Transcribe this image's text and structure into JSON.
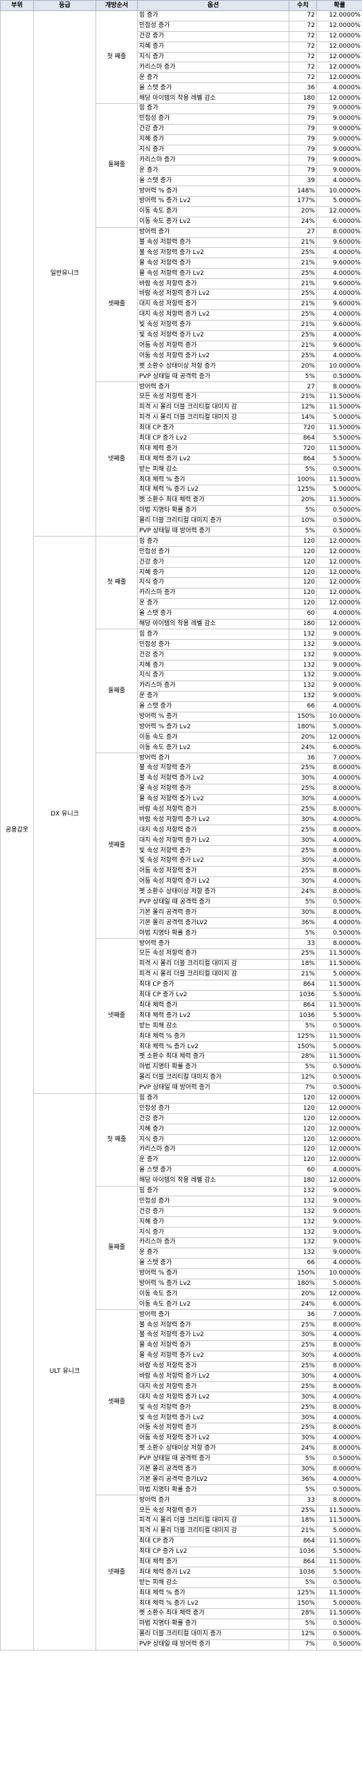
{
  "headers": [
    "부위",
    "등급",
    "개방순서",
    "옵션",
    "수치",
    "확률"
  ],
  "part": "공용갑옷",
  "grades": [
    {
      "name": "일반유니크",
      "slots": [
        {
          "name": "첫 째줄",
          "rows": [
            [
              "힘 증가",
              "72",
              "12.0000%"
            ],
            [
              "민첩성 증가",
              "72",
              "12.0000%"
            ],
            [
              "건강 증가",
              "72",
              "12.0000%"
            ],
            [
              "지혜 증가",
              "72",
              "12.0000%"
            ],
            [
              "지식 증가",
              "72",
              "12.0000%"
            ],
            [
              "카리스마 증가",
              "72",
              "12.0000%"
            ],
            [
              "운 증가",
              "72",
              "12.0000%"
            ],
            [
              "올 스탯 증가",
              "36",
              "4.0000%"
            ],
            [
              "해당 아이템의 착용 레벨 감소",
              "180",
              "12.0000%"
            ]
          ]
        },
        {
          "name": "둘째줄",
          "rows": [
            [
              "힘 증가",
              "79",
              "9.0000%"
            ],
            [
              "민첩성 증가",
              "79",
              "9.0000%"
            ],
            [
              "건강 증가",
              "79",
              "9.0000%"
            ],
            [
              "지혜 증가",
              "79",
              "9.0000%"
            ],
            [
              "지식 증가",
              "79",
              "9.0000%"
            ],
            [
              "카리스마 증가",
              "79",
              "9.0000%"
            ],
            [
              "운 증가",
              "79",
              "9.0000%"
            ],
            [
              "올 스탯 증가",
              "39",
              "4.0000%"
            ],
            [
              "방어력 % 증가",
              "148%",
              "10.0000%"
            ],
            [
              "방어력 % 증가 Lv2",
              "177%",
              "5.0000%"
            ],
            [
              "이동 속도 증가",
              "20%",
              "12.0000%"
            ],
            [
              "이동 속도 증가 Lv2",
              "24%",
              "6.0000%"
            ]
          ]
        },
        {
          "name": "셋째줄",
          "rows": [
            [
              "방어력 증가",
              "27",
              "8.0000%"
            ],
            [
              "불 속성 저항력 증가",
              "21%",
              "9.6000%"
            ],
            [
              "불 속성 저항력 증가 Lv2",
              "25%",
              "4.0000%"
            ],
            [
              "물 속성 저항력 증가",
              "21%",
              "9.6000%"
            ],
            [
              "물 속성 저항력 증가 Lv2",
              "25%",
              "4.0000%"
            ],
            [
              "바람 속성 저항력 증가",
              "21%",
              "9.6000%"
            ],
            [
              "바람 속성 저항력 증가 Lv2",
              "25%",
              "4.0000%"
            ],
            [
              "대지 속성 저항력 증가",
              "21%",
              "9.6000%"
            ],
            [
              "대지 속성 저항력 증가 Lv2",
              "25%",
              "4.0000%"
            ],
            [
              "빛 속성 저항력 증가",
              "21%",
              "9.6000%"
            ],
            [
              "빛 속성 저항력 증가 Lv2",
              "25%",
              "4.0000%"
            ],
            [
              "어둠 속성 저항력 증가",
              "21%",
              "9.6000%"
            ],
            [
              "어둠 속성 저항력 증가 Lv2",
              "25%",
              "4.0000%"
            ],
            [
              "펫 소환수 상태이상 저항 증가",
              "20%",
              "10.0000%"
            ],
            [
              "PVP 상태일 때 공격력 증가",
              "5%",
              "0.5000%"
            ]
          ]
        },
        {
          "name": "넷째줄",
          "rows": [
            [
              "방어력 증가",
              "27",
              "8.0000%"
            ],
            [
              "모든 속성 저항력 증가",
              "21%",
              "11.5000%"
            ],
            [
              "피격 시 몰리 더블 크리티컬 대미지 감",
              "12%",
              "11.5000%"
            ],
            [
              "피격 시 몰리 더블 크리티컬 대미지 감",
              "14%",
              "5.0000%"
            ],
            [
              "최대 CP 증가",
              "720",
              "11.5000%"
            ],
            [
              "최대 CP 증가 Lv2",
              "864",
              "5.5000%"
            ],
            [
              "최대 체력 증가",
              "720",
              "11.5000%"
            ],
            [
              "최대 체력 증가 Lv2",
              "864",
              "5.5000%"
            ],
            [
              "받는 피해 감소",
              "5%",
              "0.5000%"
            ],
            [
              "최대 체력 % 증가",
              "100%",
              "11.5000%"
            ],
            [
              "최대 체력 % 증가 Lv2",
              "125%",
              "5.0000%"
            ],
            [
              "펫 소환수 최대 체력 증가",
              "20%",
              "11.5000%"
            ],
            [
              "마법 지명타 확률 증가",
              "5%",
              "0.5000%"
            ],
            [
              "몰리 더블 크리티컬 대미지 증가",
              "10%",
              "0.5000%"
            ],
            [
              "PVP 상태일 때 방어력 증가",
              "5%",
              "0.5000%"
            ]
          ]
        }
      ]
    },
    {
      "name": "DX 유니크",
      "slots": [
        {
          "name": "첫 째줄",
          "rows": [
            [
              "힘 증가",
              "120",
              "12.0000%"
            ],
            [
              "민첩성 증가",
              "120",
              "12.0000%"
            ],
            [
              "건강 증가",
              "120",
              "12.0000%"
            ],
            [
              "지혜 증가",
              "120",
              "12.0000%"
            ],
            [
              "지식 증가",
              "120",
              "12.0000%"
            ],
            [
              "카리스마 증가",
              "120",
              "12.0000%"
            ],
            [
              "운 증가",
              "120",
              "12.0000%"
            ],
            [
              "올 스탯 증가",
              "60",
              "4.0000%"
            ],
            [
              "해당 아이템의 착용 레벨 감소",
              "180",
              "12.0000%"
            ]
          ]
        },
        {
          "name": "둘째줄",
          "rows": [
            [
              "힘 증가",
              "132",
              "9.0000%"
            ],
            [
              "민첩성 증가",
              "132",
              "9.0000%"
            ],
            [
              "건강 증가",
              "132",
              "9.0000%"
            ],
            [
              "지혜 증가",
              "132",
              "9.0000%"
            ],
            [
              "지식 증가",
              "132",
              "9.0000%"
            ],
            [
              "카리스마 증가",
              "132",
              "9.0000%"
            ],
            [
              "운 증가",
              "132",
              "9.0000%"
            ],
            [
              "올 스탯 증가",
              "66",
              "4.0000%"
            ],
            [
              "방어력 % 증가",
              "150%",
              "10.0000%"
            ],
            [
              "방어력 % 증가 Lv2",
              "180%",
              "5.0000%"
            ],
            [
              "이동 속도 증가",
              "20%",
              "12.0000%"
            ],
            [
              "이동 속도 증가 Lv2",
              "24%",
              "6.0000%"
            ]
          ]
        },
        {
          "name": "셋째줄",
          "rows": [
            [
              "방어력 증가",
              "36",
              "7.0000%"
            ],
            [
              "불 속성 저항력 증가",
              "25%",
              "8.0000%"
            ],
            [
              "불 속성 저항력 증가 Lv2",
              "30%",
              "4.0000%"
            ],
            [
              "물 속성 저항력 증가",
              "25%",
              "8.0000%"
            ],
            [
              "물 속성 저항력 증가 Lv2",
              "30%",
              "4.0000%"
            ],
            [
              "바람 속성 저항력 증가",
              "25%",
              "8.0000%"
            ],
            [
              "바람 속성 저항력 증가 Lv2",
              "30%",
              "4.0000%"
            ],
            [
              "대지 속성 저항력 증가",
              "25%",
              "8.0000%"
            ],
            [
              "대지 속성 저항력 증가 Lv2",
              "30%",
              "4.0000%"
            ],
            [
              "빛 속성 저항력 증가",
              "25%",
              "8.0000%"
            ],
            [
              "빛 속성 저항력 증가 Lv2",
              "30%",
              "4.0000%"
            ],
            [
              "어둠 속성 저항력 증가",
              "25%",
              "8.0000%"
            ],
            [
              "어둠 속성 저항력 증가 Lv2",
              "30%",
              "4.0000%"
            ],
            [
              "펫 소환수 상태이상 저항 증가",
              "24%",
              "8.0000%"
            ],
            [
              "PVP 상태일 때 공격력 증가",
              "5%",
              "0.5000%"
            ],
            [
              "기본 몰리 공격력 증가",
              "30%",
              "8.0000%"
            ],
            [
              "기본 몰리 공격력 증가LV2",
              "36%",
              "4.0000%"
            ],
            [
              "마법 지명타 확률 증가",
              "5%",
              "0.5000%"
            ]
          ]
        },
        {
          "name": "넷째줄",
          "rows": [
            [
              "방어력 증가",
              "33",
              "8.0000%"
            ],
            [
              "모든 속성 저항력 증가",
              "25%",
              "11.5000%"
            ],
            [
              "피격 시 몰리 더블 크리티컬 대미지 감",
              "18%",
              "11.5000%"
            ],
            [
              "피격 시 몰리 더블 크리티컬 대미지 감",
              "21%",
              "5.0000%"
            ],
            [
              "최대 CP 증가",
              "864",
              "11.5000%"
            ],
            [
              "최대 CP 증가 Lv2",
              "1036",
              "5.5000%"
            ],
            [
              "최대 체력 증가",
              "864",
              "11.5000%"
            ],
            [
              "최대 체력 증가 Lv2",
              "1036",
              "5.5000%"
            ],
            [
              "받는 피해 감소",
              "5%",
              "0.5000%"
            ],
            [
              "최대 체력 % 증가",
              "125%",
              "11.5000%"
            ],
            [
              "최대 체력 % 증가 Lv2",
              "150%",
              "5.0000%"
            ],
            [
              "펫 소환수 최대 체력 증가",
              "28%",
              "11.5000%"
            ],
            [
              "마법 지명타 확률 증가",
              "5%",
              "0.5000%"
            ],
            [
              "몰리 더블 크리티컬 대미지 증가",
              "12%",
              "0.5000%"
            ],
            [
              "PVP 상태일 때 방어력 증가",
              "7%",
              "0.5000%"
            ]
          ]
        }
      ]
    },
    {
      "name": "ULT 유니크",
      "slots": [
        {
          "name": "첫 째줄",
          "rows": [
            [
              "힘 증가",
              "120",
              "12.0000%"
            ],
            [
              "민첩성 증가",
              "120",
              "12.0000%"
            ],
            [
              "건강 증가",
              "120",
              "12.0000%"
            ],
            [
              "지혜 증가",
              "120",
              "12.0000%"
            ],
            [
              "지식 증가",
              "120",
              "12.0000%"
            ],
            [
              "카리스마 증가",
              "120",
              "12.0000%"
            ],
            [
              "운 증가",
              "120",
              "12.0000%"
            ],
            [
              "올 스탯 증가",
              "60",
              "4.0000%"
            ],
            [
              "해당 아이템의 착용 레벨 감소",
              "180",
              "12.0000%"
            ]
          ]
        },
        {
          "name": "둘째줄",
          "rows": [
            [
              "힘 증가",
              "132",
              "9.0000%"
            ],
            [
              "민첩성 증가",
              "132",
              "9.0000%"
            ],
            [
              "건강 증가",
              "132",
              "9.0000%"
            ],
            [
              "지혜 증가",
              "132",
              "9.0000%"
            ],
            [
              "지식 증가",
              "132",
              "9.0000%"
            ],
            [
              "카리스마 증가",
              "132",
              "9.0000%"
            ],
            [
              "운 증가",
              "132",
              "9.0000%"
            ],
            [
              "올 스탯 증가",
              "66",
              "4.0000%"
            ],
            [
              "방어력 % 증가",
              "150%",
              "10.0000%"
            ],
            [
              "방어력 % 증가 Lv2",
              "180%",
              "5.0000%"
            ],
            [
              "이동 속도 증가",
              "20%",
              "12.0000%"
            ],
            [
              "이동 속도 증가 Lv2",
              "24%",
              "6.0000%"
            ]
          ]
        },
        {
          "name": "셋째줄",
          "rows": [
            [
              "방어력 증가",
              "36",
              "7.0000%"
            ],
            [
              "불 속성 저항력 증가",
              "25%",
              "8.0000%"
            ],
            [
              "불 속성 저항력 증가 Lv2",
              "30%",
              "4.0000%"
            ],
            [
              "물 속성 저항력 증가",
              "25%",
              "8.0000%"
            ],
            [
              "물 속성 저항력 증가 Lv2",
              "30%",
              "4.0000%"
            ],
            [
              "바람 속성 저항력 증가",
              "25%",
              "8.0000%"
            ],
            [
              "바람 속성 저항력 증가 Lv2",
              "30%",
              "4.0000%"
            ],
            [
              "대지 속성 저항력 증가",
              "25%",
              "8.0000%"
            ],
            [
              "대지 속성 저항력 증가 Lv2",
              "30%",
              "4.0000%"
            ],
            [
              "빛 속성 저항력 증가",
              "25%",
              "8.0000%"
            ],
            [
              "빛 속성 저항력 증가 Lv2",
              "30%",
              "4.0000%"
            ],
            [
              "어둠 속성 저항력 증가",
              "25%",
              "8.0000%"
            ],
            [
              "어둠 속성 저항력 증가 Lv2",
              "30%",
              "4.0000%"
            ],
            [
              "펫 소환수 상태이상 저항 증가",
              "24%",
              "8.0000%"
            ],
            [
              "PVP 상태일 때 공격력 증가",
              "5%",
              "0.5000%"
            ],
            [
              "기본 몰리 공격력 증가",
              "30%",
              "8.0000%"
            ],
            [
              "기본 몰리 공격력 증가LV2",
              "36%",
              "4.0000%"
            ],
            [
              "마법 지명타 확률 증가",
              "5%",
              "0.5000%"
            ]
          ]
        },
        {
          "name": "넷째줄",
          "rows": [
            [
              "방어력 증가",
              "33",
              "8.0000%"
            ],
            [
              "모든 속성 저항력 증가",
              "25%",
              "11.5000%"
            ],
            [
              "피격 시 몰리 더블 크리티컬 대미지 감",
              "18%",
              "11.5000%"
            ],
            [
              "피격 시 몰리 더블 크리티컬 대미지 감",
              "21%",
              "5.0000%"
            ],
            [
              "최대 CP 증가",
              "864",
              "11.5000%"
            ],
            [
              "최대 CP 증가 Lv2",
              "1036",
              "5.5000%"
            ],
            [
              "최대 체력 증가",
              "864",
              "11.5000%"
            ],
            [
              "최대 체력 증가 Lv2",
              "1036",
              "5.5000%"
            ],
            [
              "받는 피해 감소",
              "5%",
              "0.5000%"
            ],
            [
              "최대 체력 % 증가",
              "125%",
              "11.5000%"
            ],
            [
              "최대 체력 % 증가 Lv2",
              "150%",
              "5.0000%"
            ],
            [
              "펫 소환수 최대 체력 증가",
              "28%",
              "11.5000%"
            ],
            [
              "마법 지명타 확률 증가",
              "5%",
              "0.5000%"
            ],
            [
              "몰리 더블 크리티컬 대미지 증가",
              "12%",
              "0.5000%"
            ],
            [
              "PVP 상태일 때 방어력 증가",
              "7%",
              "0.5000%"
            ]
          ]
        }
      ]
    }
  ]
}
